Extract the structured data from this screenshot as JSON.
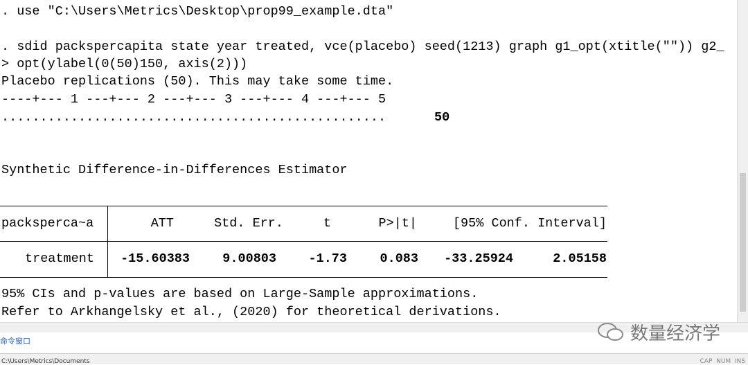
{
  "console": {
    "lines": [
      ". use \"C:\\Users\\Metrics\\Desktop\\prop99_example.dta\"",
      ". sdid packspercapita state year treated, vce(placebo) seed(1213) graph g1_opt(xtitle(\"\")) g2_",
      "> opt(ylabel(0(50)150, axis(2)))",
      "Placebo replications (50). This may take some time.",
      "----+--- 1 ---+--- 2 ---+--- 3 ---+--- 4 ---+--- 5",
      ".................................................."
    ],
    "progress_count": "50",
    "estimator_title": "Synthetic Difference-in-Differences Estimator",
    "table": {
      "header": [
        "packsperca~a",
        "ATT",
        "Std. Err.",
        "t",
        "P>|t|",
        "[95% Conf. Interval]"
      ],
      "rows": [
        [
          "treatment",
          "-15.60383",
          "9.00803",
          "-1.73",
          "0.083",
          "-33.25924",
          "2.05158"
        ]
      ]
    },
    "notes": [
      "95% CIs and p-values are based on Large-Sample approximations.",
      "Refer to Arkhangelsky et al., (2020) for theoretical derivations."
    ]
  },
  "footer": {
    "tab": "命令窗口",
    "path": "C:\\Users\\Metrics\\Documents",
    "status": "CAP  NUM  INS"
  },
  "watermark": "数量经济学"
}
